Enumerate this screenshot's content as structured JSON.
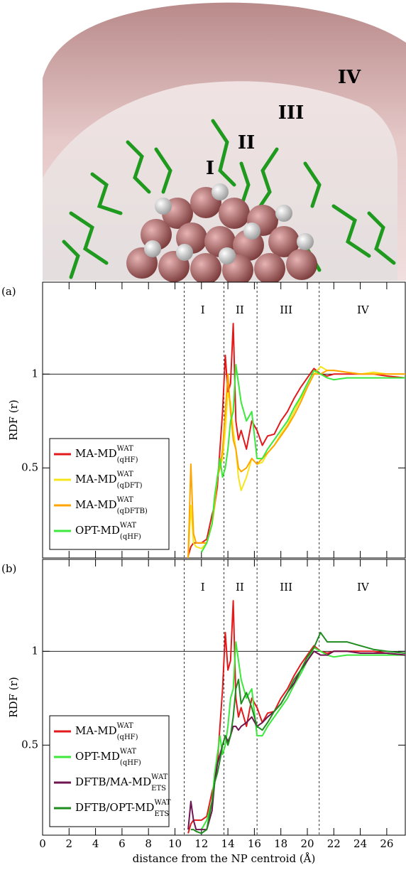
{
  "image": {
    "labels": [
      "I",
      "II",
      "III",
      "IV"
    ]
  },
  "chart_data": [
    {
      "type": "line",
      "panel": "(a)",
      "ylabel": "RDF (r)",
      "xlim": [
        0,
        27.4
      ],
      "ylim": [
        0.02,
        1.49
      ],
      "xticks": [
        0,
        2,
        4,
        6,
        8,
        10,
        12,
        14,
        16,
        18,
        20,
        22,
        24,
        26
      ],
      "yticks": [
        0.5,
        1
      ],
      "hline": 1,
      "vlines": [
        10.7,
        13.7,
        16.2,
        20.9
      ],
      "regions": [
        {
          "label": "I",
          "x": 12.1
        },
        {
          "label": "II",
          "x": 14.9
        },
        {
          "label": "III",
          "x": 18.4
        },
        {
          "label": "IV",
          "x": 24.2
        }
      ],
      "legend": "left",
      "x": [
        11.0,
        11.2,
        11.4,
        11.6,
        12.0,
        12.4,
        12.8,
        13.0,
        13.2,
        13.4,
        13.6,
        13.8,
        14.0,
        14.2,
        14.4,
        14.6,
        14.8,
        15.0,
        15.4,
        15.8,
        16.2,
        16.6,
        17.0,
        17.5,
        18.0,
        18.5,
        19.0,
        19.5,
        20.0,
        20.5,
        21.0,
        21.5,
        22.0,
        23.0,
        24.0,
        25.0,
        26.0,
        27.4
      ],
      "series": [
        {
          "name": "MA-MD",
          "sup": "WAT",
          "sub": "(qHF)",
          "color": "#e31a1c",
          "values": [
            0.03,
            0.08,
            0.1,
            0.1,
            0.1,
            0.12,
            0.25,
            0.3,
            0.4,
            0.6,
            0.8,
            1.1,
            0.9,
            0.95,
            1.27,
            0.75,
            0.65,
            0.7,
            0.6,
            0.75,
            0.7,
            0.62,
            0.67,
            0.68,
            0.75,
            0.8,
            0.87,
            0.93,
            0.98,
            1.03,
            1.0,
            0.99,
            1.0,
            1.0,
            1.0,
            1.0,
            0.99,
            0.98
          ]
        },
        {
          "name": "MA-MD",
          "sup": "WAT",
          "sub": "(qDFT)",
          "color": "#f5e61c",
          "values": [
            0.02,
            0.3,
            0.1,
            0.08,
            0.07,
            0.1,
            0.2,
            0.3,
            0.45,
            0.5,
            0.55,
            0.7,
            0.9,
            0.85,
            0.7,
            0.6,
            0.45,
            0.38,
            0.45,
            0.55,
            0.52,
            0.53,
            0.58,
            0.62,
            0.68,
            0.73,
            0.8,
            0.87,
            0.93,
            1.0,
            1.04,
            1.02,
            1.02,
            1.01,
            1.0,
            1.01,
            1.0,
            1.0
          ]
        },
        {
          "name": "MA-MD",
          "sup": "WAT",
          "sub": "(qDFTB)",
          "color": "#ffa500",
          "values": [
            0.02,
            0.52,
            0.15,
            0.1,
            0.1,
            0.1,
            0.2,
            0.3,
            0.45,
            0.5,
            0.6,
            0.8,
            1.0,
            0.8,
            0.65,
            0.6,
            0.5,
            0.48,
            0.5,
            0.55,
            0.52,
            0.55,
            0.58,
            0.62,
            0.67,
            0.72,
            0.78,
            0.85,
            0.93,
            1.0,
            1.0,
            1.02,
            1.02,
            1.01,
            1.0,
            1.0,
            1.0,
            1.0
          ]
        },
        {
          "name": "OPT-MD",
          "sup": "WAT",
          "sub": "(qHF)",
          "color": "#3be83b",
          "values": [
            null,
            null,
            null,
            null,
            0.05,
            0.1,
            0.2,
            0.35,
            0.45,
            0.55,
            0.45,
            0.5,
            0.6,
            0.75,
            0.8,
            1.05,
            0.95,
            0.85,
            0.75,
            0.8,
            0.55,
            0.55,
            0.6,
            0.65,
            0.7,
            0.75,
            0.82,
            0.88,
            0.95,
            1.02,
            1.0,
            0.98,
            0.97,
            0.98,
            0.98,
            0.98,
            0.98,
            0.98
          ]
        }
      ]
    },
    {
      "type": "line",
      "panel": "(b)",
      "ylabel": "RDF (r)",
      "xlabel": "distance from the NP centroid (Å)",
      "xlim": [
        0,
        27.4
      ],
      "ylim": [
        0.02,
        1.49
      ],
      "xticks": [
        0,
        2,
        4,
        6,
        8,
        10,
        12,
        14,
        16,
        18,
        20,
        22,
        24,
        26
      ],
      "yticks": [
        0.5,
        1
      ],
      "hline": 1,
      "vlines": [
        10.7,
        13.7,
        16.2,
        20.9
      ],
      "regions": [
        {
          "label": "I",
          "x": 12.1
        },
        {
          "label": "II",
          "x": 14.9
        },
        {
          "label": "III",
          "x": 18.4
        },
        {
          "label": "IV",
          "x": 24.2
        }
      ],
      "legend": "left",
      "x": [
        11.0,
        11.2,
        11.4,
        11.6,
        12.0,
        12.4,
        12.8,
        13.0,
        13.2,
        13.4,
        13.6,
        13.8,
        14.0,
        14.2,
        14.4,
        14.6,
        14.8,
        15.0,
        15.4,
        15.8,
        16.2,
        16.6,
        17.0,
        17.5,
        18.0,
        18.5,
        19.0,
        19.5,
        20.0,
        20.5,
        21.0,
        21.5,
        22.0,
        23.0,
        24.0,
        25.0,
        26.0,
        27.4
      ],
      "series": [
        {
          "name": "MA-MD",
          "sup": "WAT",
          "sub": "(qHF)",
          "color": "#e31a1c",
          "values": [
            0.03,
            0.08,
            0.1,
            0.1,
            0.1,
            0.12,
            0.25,
            0.3,
            0.4,
            0.6,
            0.8,
            1.1,
            0.9,
            0.95,
            1.27,
            0.75,
            0.65,
            0.7,
            0.6,
            0.75,
            0.7,
            0.62,
            0.67,
            0.68,
            0.75,
            0.8,
            0.87,
            0.93,
            0.98,
            1.03,
            1.0,
            0.99,
            1.0,
            1.0,
            1.0,
            1.0,
            0.99,
            0.98
          ]
        },
        {
          "name": "OPT-MD",
          "sup": "WAT",
          "sub": "(qHF)",
          "color": "#3be83b",
          "values": [
            null,
            null,
            null,
            null,
            0.05,
            0.1,
            0.2,
            0.35,
            0.45,
            0.55,
            0.45,
            0.5,
            0.6,
            0.75,
            0.8,
            1.05,
            0.95,
            0.85,
            0.75,
            0.8,
            0.55,
            0.55,
            0.6,
            0.65,
            0.7,
            0.75,
            0.82,
            0.88,
            0.95,
            1.02,
            1.0,
            0.98,
            0.97,
            0.98,
            0.98,
            0.98,
            0.98,
            0.98
          ]
        },
        {
          "name": "DFTB/MA-MD",
          "sup": "WAT",
          "sub": "ETS",
          "color": "#6e1450",
          "values": [
            0.05,
            0.2,
            0.1,
            0.05,
            0.05,
            0.05,
            0.15,
            0.3,
            0.4,
            0.45,
            0.5,
            0.55,
            0.52,
            0.55,
            0.6,
            0.6,
            0.58,
            0.6,
            0.62,
            0.65,
            0.6,
            0.62,
            0.65,
            0.68,
            0.72,
            0.78,
            0.83,
            0.9,
            0.95,
            1.0,
            0.98,
            0.98,
            1.0,
            1.0,
            0.99,
            0.99,
            0.99,
            0.98
          ]
        },
        {
          "name": "DFTB/OPT-MD",
          "sup": "WAT",
          "sub": "ETS",
          "color": "#1e8c1e",
          "values": [
            null,
            0.05,
            0.05,
            0.04,
            0.03,
            0.05,
            0.2,
            0.3,
            0.35,
            0.42,
            0.5,
            0.55,
            0.5,
            0.55,
            0.65,
            0.8,
            0.85,
            0.72,
            0.78,
            0.7,
            0.6,
            0.58,
            0.62,
            0.68,
            0.72,
            0.78,
            0.85,
            0.9,
            0.97,
            1.02,
            1.1,
            1.05,
            1.05,
            1.05,
            1.03,
            1.01,
            1.0,
            0.99
          ]
        }
      ]
    }
  ]
}
